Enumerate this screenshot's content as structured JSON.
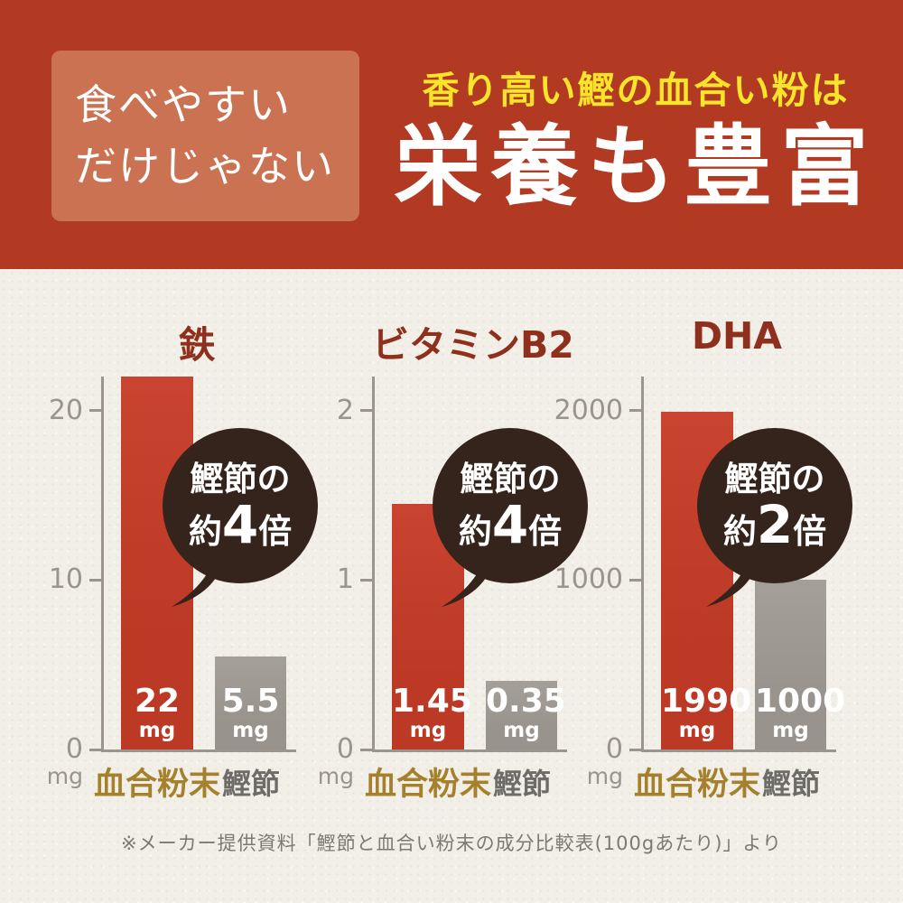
{
  "header": {
    "badge_line1": "食べやすい",
    "badge_line2": "だけじゃない",
    "subtitle": "香り高い鰹の血合い粉は",
    "title": "栄養も豊富",
    "colors": {
      "background": "#b23a23",
      "badge_background": "#cb7252",
      "subtitle_text": "#f8e52b",
      "title_text": "#ffffff"
    }
  },
  "chart_data": {
    "type": "bar",
    "unit": "mg",
    "grid": false,
    "legend": "none",
    "source_note": "※メーカー提供資料「鰹節と血合い粉末の成分比較表(100gあたり)」より",
    "categories": [
      "血合粉末",
      "鰹節"
    ],
    "series_colors": {
      "血合粉末": "#c63c28",
      "鰹節": "#a19b95"
    },
    "charts": [
      {
        "title": "鉄",
        "ylim": [
          0,
          22
        ],
        "yticks": [
          0,
          10,
          20
        ],
        "ylabel_unit": "mg",
        "bars": [
          {
            "category": "血合粉末",
            "value": 22,
            "display_value": "22",
            "unit": "mg",
            "color": "#c63c28"
          },
          {
            "category": "鰹節",
            "value": 5.5,
            "display_value": "5.5",
            "unit": "mg",
            "color": "#a19b95"
          }
        ],
        "callout": {
          "line1": "鰹節の",
          "approx": "約",
          "multiplier": "4",
          "suffix": "倍"
        }
      },
      {
        "title": "ビタミンB2",
        "ylim": [
          0,
          2.2
        ],
        "yticks": [
          0,
          1,
          2
        ],
        "ylabel_unit": "mg",
        "bars": [
          {
            "category": "血合粉末",
            "value": 1.45,
            "display_value": "1.45",
            "unit": "mg",
            "color": "#c63c28"
          },
          {
            "category": "鰹節",
            "value": 0.35,
            "display_value": "0.35",
            "unit": "mg",
            "color": "#a19b95"
          }
        ],
        "callout": {
          "line1": "鰹節の",
          "approx": "約",
          "multiplier": "4",
          "suffix": "倍"
        }
      },
      {
        "title": "DHA",
        "ylim": [
          0,
          2200
        ],
        "yticks": [
          0,
          1000,
          2000
        ],
        "ylabel_unit": "mg",
        "bars": [
          {
            "category": "血合粉末",
            "value": 1990,
            "display_value": "1990",
            "unit": "mg",
            "color": "#c63c28"
          },
          {
            "category": "鰹節",
            "value": 1000,
            "display_value": "1000",
            "unit": "mg",
            "color": "#a19b95"
          }
        ],
        "callout": {
          "line1": "鰹節の",
          "approx": "約",
          "multiplier": "2",
          "suffix": "倍"
        }
      }
    ]
  }
}
